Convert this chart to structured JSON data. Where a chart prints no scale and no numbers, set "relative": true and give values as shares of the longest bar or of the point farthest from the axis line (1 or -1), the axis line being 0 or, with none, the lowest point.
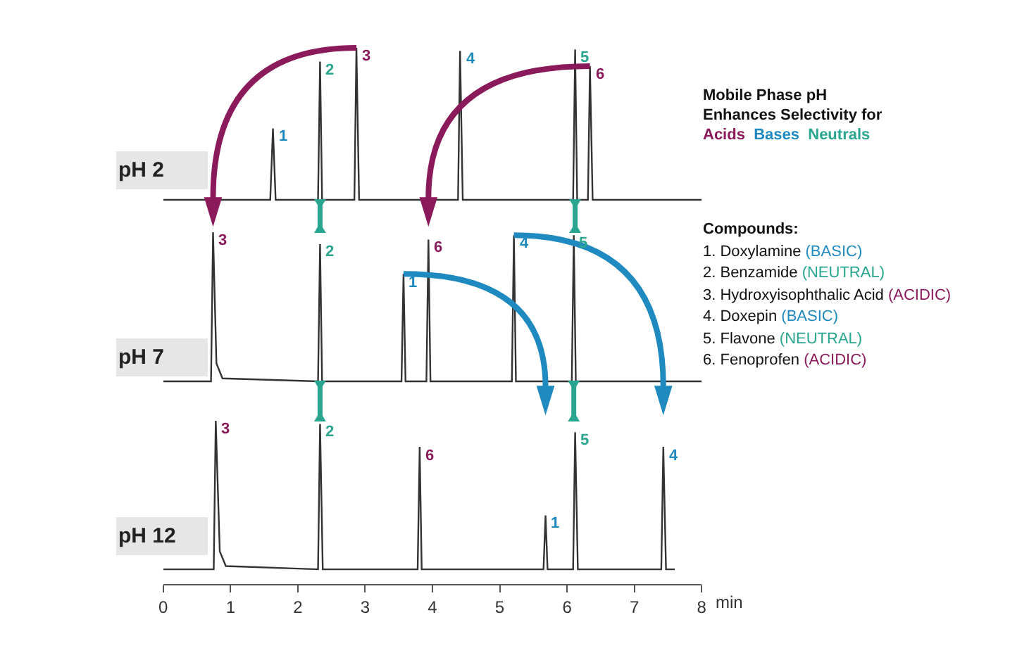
{
  "chart_data": [
    {
      "type": "line",
      "title": "pH 2",
      "relative": true,
      "xlim": [
        0,
        8
      ],
      "xticks": [
        0,
        1,
        2,
        3,
        4,
        5,
        6,
        7,
        8
      ],
      "tick_labels": false,
      "x": [
        0,
        1.59,
        1.63,
        1.67,
        2.3,
        2.33,
        2.36,
        2.84,
        2.87,
        2.91,
        4.38,
        4.41,
        4.45,
        6.09,
        6.12,
        6.15,
        6.31,
        6.34,
        6.38,
        8.0
      ],
      "series": [
        {
          "color": "#333333",
          "values": [
            0,
            0,
            0.47,
            0,
            0,
            0.91,
            0,
            0,
            1,
            0,
            0,
            0.98,
            0,
            0,
            0.99,
            0,
            0,
            0.88,
            0,
            0
          ]
        }
      ],
      "annotations": [
        {
          "text": "1",
          "x": 1.63,
          "y": 0.47
        },
        {
          "text": "2",
          "x": 2.33,
          "y": 0.91
        },
        {
          "text": "3",
          "x": 2.87,
          "y": 1
        },
        {
          "text": "4",
          "x": 4.41,
          "y": 0.98
        },
        {
          "text": "5",
          "x": 6.12,
          "y": 0.99
        },
        {
          "text": "6",
          "x": 6.34,
          "y": 0.88
        }
      ]
    },
    {
      "type": "line",
      "title": "pH 7",
      "relative": true,
      "xlim": [
        0,
        8
      ],
      "xticks": [
        0,
        1,
        2,
        3,
        4,
        5,
        6,
        7,
        8
      ],
      "tick_labels": false,
      "x": [
        0,
        0.71,
        0.74,
        0.79,
        0.88,
        2.3,
        2.33,
        2.36,
        3.54,
        3.57,
        3.6,
        3.91,
        3.94,
        3.97,
        5.18,
        5.21,
        5.24,
        6.07,
        6.1,
        6.13,
        8.0
      ],
      "series": [
        {
          "color": "#333333",
          "values": [
            0,
            0,
            1,
            0.12,
            0.02,
            0,
            0.92,
            0,
            0,
            0.72,
            0,
            0,
            0.95,
            0,
            0,
            0.98,
            0,
            0,
            0.98,
            0,
            0
          ]
        }
      ],
      "annotations": [
        {
          "text": "1",
          "x": 3.57,
          "y": 0.72
        },
        {
          "text": "2",
          "x": 2.33,
          "y": 0.92
        },
        {
          "text": "3",
          "x": 0.74,
          "y": 1
        },
        {
          "text": "4",
          "x": 5.21,
          "y": 0.98
        },
        {
          "text": "5",
          "x": 6.1,
          "y": 0.98
        },
        {
          "text": "6",
          "x": 3.94,
          "y": 0.95
        }
      ]
    },
    {
      "type": "line",
      "title": "pH 12",
      "relative": true,
      "xlim": [
        0,
        8
      ],
      "xticks": [
        0,
        1,
        2,
        3,
        4,
        5,
        6,
        7,
        8
      ],
      "tick_labels": "x",
      "xlabel": "min",
      "x": [
        0,
        0.75,
        0.78,
        0.84,
        0.93,
        2.3,
        2.33,
        2.37,
        3.78,
        3.81,
        3.84,
        5.65,
        5.68,
        5.71,
        6.09,
        6.12,
        6.16,
        7.4,
        7.43,
        7.47,
        7.6
      ],
      "series": [
        {
          "color": "#333333",
          "values": [
            0.09,
            0.09,
            1,
            0.2,
            0.11,
            0.09,
            0.98,
            0.09,
            0.09,
            0.84,
            0.09,
            0.09,
            0.42,
            0.09,
            0.09,
            0.93,
            0.09,
            0.09,
            0.84,
            0.09,
            0.09
          ]
        }
      ],
      "annotations": [
        {
          "text": "1",
          "x": 5.68,
          "y": 0.42
        },
        {
          "text": "2",
          "x": 2.33,
          "y": 0.98
        },
        {
          "text": "3",
          "x": 0.78,
          "y": 1
        },
        {
          "text": "4",
          "x": 7.43,
          "y": 0.84
        },
        {
          "text": "5",
          "x": 6.12,
          "y": 0.93
        },
        {
          "text": "6",
          "x": 3.81,
          "y": 0.84
        }
      ]
    },
    {
      "type": "other",
      "annotations": [
        "Mobile Phase pH",
        "Enhances Selectivity for",
        "Acids",
        "Bases",
        "Neutrals",
        "Compounds:",
        "1. Doxylamine",
        "(BASIC)",
        "2. Benzamide",
        "(NEUTRAL)",
        "3. Hydroxyisophthalic Acid",
        "(ACIDIC)",
        "4. Doxepin",
        "(BASIC)",
        "5. Flavone",
        "(NEUTRAL)",
        "6. Fenoprofen",
        "(ACIDIC)"
      ]
    }
  ]
}
